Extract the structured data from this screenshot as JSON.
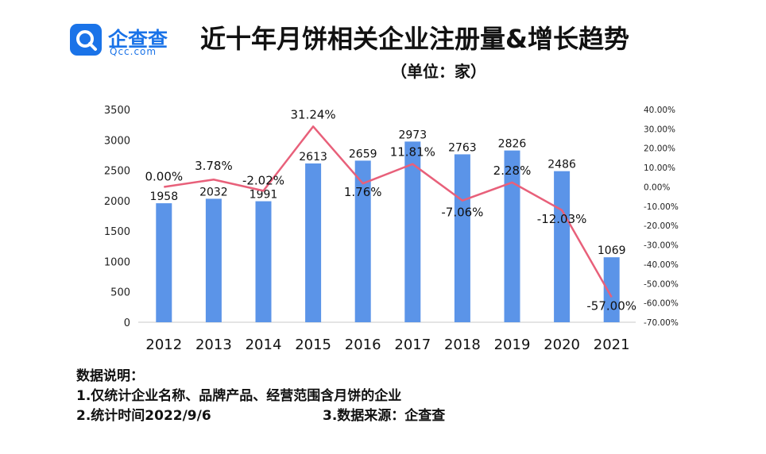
{
  "logo": {
    "cn": "企查查",
    "en": "Qcc.com"
  },
  "title": "近十年月饼相关企业注册量&增长趋势",
  "subtitle": "（单位：家）",
  "chart_data": {
    "type": "bar",
    "categories": [
      "2012",
      "2013",
      "2014",
      "2015",
      "2016",
      "2017",
      "2018",
      "2019",
      "2020",
      "2021"
    ],
    "series": [
      {
        "type": "bar",
        "values": [
          1958,
          2032,
          1991,
          2613,
          2659,
          2973,
          2763,
          2826,
          2486,
          1069
        ],
        "labels": [
          "1958",
          "2032",
          "1991",
          "2613",
          "2659",
          "2973",
          "2763",
          "2826",
          "2486",
          "1069"
        ],
        "color": "#5b94e8"
      },
      {
        "type": "line",
        "axis": "right",
        "values": [
          0.0,
          3.78,
          -2.02,
          31.24,
          1.76,
          11.81,
          -7.06,
          2.28,
          -12.03,
          -57.0
        ],
        "labels": [
          "0.00%",
          "3.78%",
          "-2.02%",
          "31.24%",
          "1.76%",
          "11.81%",
          "-7.06%",
          "2.28%",
          "-12.03%",
          "-57.00%"
        ],
        "color": "#e8607a"
      }
    ],
    "ylim": [
      0,
      3500
    ],
    "yticks": [
      "0",
      "500",
      "1000",
      "1500",
      "2000",
      "2500",
      "3000",
      "3500"
    ],
    "y2lim": [
      -70,
      40
    ],
    "y2ticks": [
      "-70.00%",
      "-60.00%",
      "-50.00%",
      "-40.00%",
      "-30.00%",
      "-20.00%",
      "-10.00%",
      "0.00%",
      "10.00%",
      "20.00%",
      "30.00%",
      "40.00%"
    ],
    "grid": false
  },
  "notes": {
    "heading": "数据说明：",
    "line1": "1.仅统计企业名称、品牌产品、经营范围含月饼的企业",
    "line2": "2.统计时间2022/9/6",
    "line3": "3.数据来源：企查查"
  }
}
